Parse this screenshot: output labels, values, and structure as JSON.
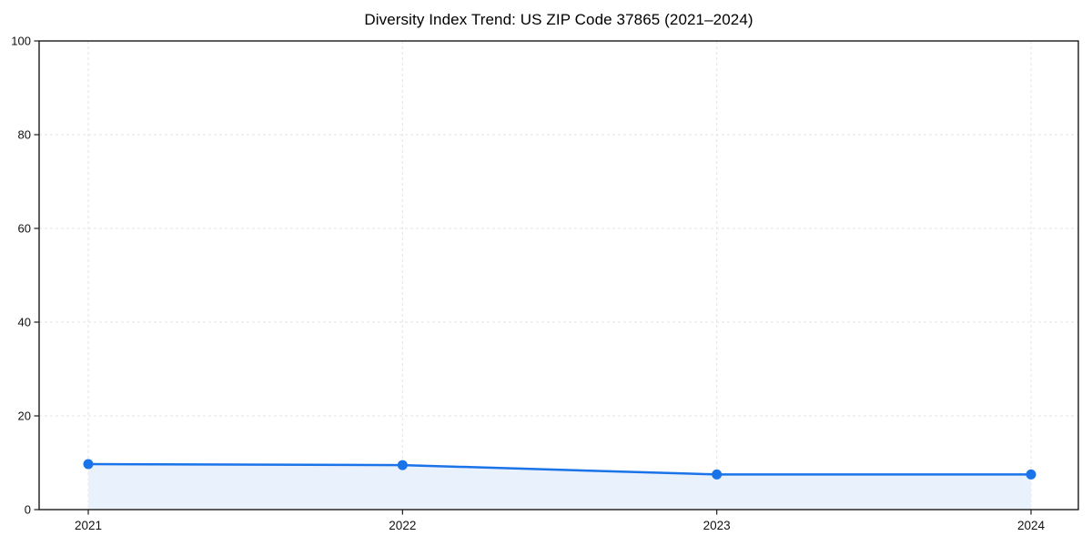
{
  "chart_data": {
    "type": "line",
    "title": "Diversity Index Trend: US ZIP Code 37865 (2021–2024)",
    "x": [
      "2021",
      "2022",
      "2023",
      "2024"
    ],
    "series": [
      {
        "name": "Diversity Index",
        "values": [
          9.7,
          9.5,
          7.5,
          7.5
        ]
      }
    ],
    "xlabel": "",
    "ylabel": "",
    "ylim": [
      0,
      100
    ],
    "yticks": [
      0,
      20,
      40,
      60,
      80,
      100
    ],
    "grid": "dashed-both-axes",
    "legend": "none",
    "marker": "circle",
    "area": true,
    "colors": {
      "line": "#1a73e8",
      "marker": "#1a73e8",
      "area_fill": "#e9f1fd",
      "grid": "#e3e3e3",
      "axis": "#1a1a1a",
      "text": "#111111",
      "background": "#ffffff"
    }
  }
}
